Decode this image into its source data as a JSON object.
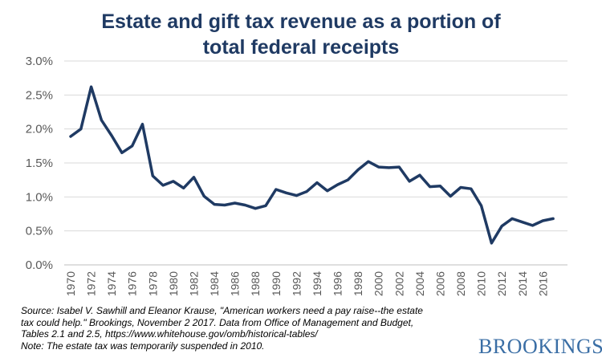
{
  "chart_data": {
    "type": "line",
    "title": [
      "Estate and gift tax revenue as a portion of",
      "total federal receipts"
    ],
    "x": [
      1970,
      1971,
      1972,
      1973,
      1974,
      1975,
      1976,
      1977,
      1978,
      1979,
      1980,
      1981,
      1982,
      1983,
      1984,
      1985,
      1986,
      1987,
      1988,
      1989,
      1990,
      1991,
      1992,
      1993,
      1994,
      1995,
      1996,
      1997,
      1998,
      1999,
      2000,
      2001,
      2002,
      2003,
      2004,
      2005,
      2006,
      2007,
      2008,
      2009,
      2010,
      2011,
      2012,
      2013,
      2014,
      2015,
      2016,
      2017
    ],
    "series": [
      {
        "values": [
          1.89,
          2.0,
          2.62,
          2.13,
          1.9,
          1.65,
          1.75,
          2.07,
          1.31,
          1.17,
          1.23,
          1.13,
          1.29,
          1.01,
          0.89,
          0.88,
          0.91,
          0.88,
          0.83,
          0.87,
          1.11,
          1.06,
          1.02,
          1.08,
          1.21,
          1.09,
          1.18,
          1.25,
          1.4,
          1.52,
          1.44,
          1.43,
          1.44,
          1.23,
          1.32,
          1.15,
          1.16,
          1.01,
          1.14,
          1.12,
          0.87,
          0.32,
          0.57,
          0.68,
          0.63,
          0.58,
          0.65,
          0.68
        ],
        "color": "#1f3a63"
      }
    ],
    "ylim": [
      0,
      3.0
    ],
    "yticks": [
      "0.0%",
      "0.5%",
      "1.0%",
      "1.5%",
      "2.0%",
      "2.5%",
      "3.0%"
    ],
    "xtick_labels": [
      "1970",
      "1972",
      "1974",
      "1976",
      "1978",
      "1980",
      "1982",
      "1984",
      "1986",
      "1988",
      "1990",
      "1992",
      "1994",
      "1996",
      "1998",
      "2000",
      "2002",
      "2004",
      "2006",
      "2008",
      "2010",
      "2012",
      "2014",
      "2016"
    ],
    "grid": true,
    "legend": "none"
  },
  "notes": {
    "lines": [
      "Source: Isabel V. Sawhill and Eleanor Krause, \"American workers need a pay raise--the estate",
      "tax could help.\" Brookings, November 2 2017. Data from Office of Management  and Budget,",
      "Tables 2.1 and 2.5, https://www.whitehouse.gov/omb/historical-tables/",
      "Note: The estate tax was temporarily suspended in 2010."
    ]
  },
  "brand": {
    "logo_text": "BROOKINGS",
    "logo_color": "#3a6ea5"
  }
}
